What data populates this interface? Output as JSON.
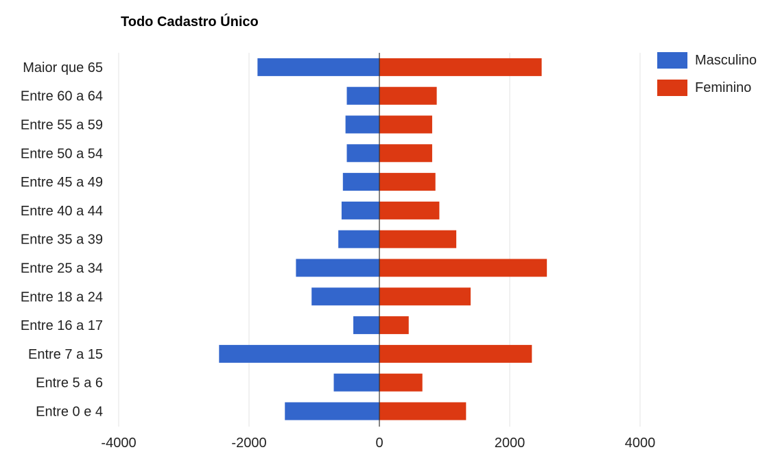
{
  "chart_data": {
    "type": "bar",
    "orientation": "horizontal",
    "title": "Todo Cadastro Único",
    "categories": [
      "Maior que 65",
      "Entre 60 a 64",
      "Entre 55 a 59",
      "Entre 50 a 54",
      "Entre 45 a 49",
      "Entre 40 a 44",
      "Entre 35 a 39",
      "Entre 25 a 34",
      "Entre 18 a 24",
      "Entre 16 a 17",
      "Entre 7 a 15",
      "Entre 5 a 6",
      "Entre 0 e 4"
    ],
    "series": [
      {
        "name": "Masculino",
        "color": "#3366cc",
        "values": [
          -1870,
          -500,
          -520,
          -500,
          -560,
          -580,
          -630,
          -1280,
          -1040,
          -400,
          -2460,
          -700,
          -1450
        ]
      },
      {
        "name": "Feminino",
        "color": "#dc3912",
        "values": [
          2490,
          880,
          810,
          810,
          860,
          920,
          1180,
          2570,
          1400,
          450,
          2340,
          660,
          1330
        ]
      }
    ],
    "xlim": [
      -4000,
      4000
    ],
    "xticks": [
      "-4000",
      "-2000",
      "0",
      "2000",
      "4000"
    ],
    "xtick_values": [
      -4000,
      -2000,
      0,
      2000,
      4000
    ],
    "xlabel": "",
    "ylabel": "",
    "grid": true,
    "legend_position": "top-right"
  }
}
